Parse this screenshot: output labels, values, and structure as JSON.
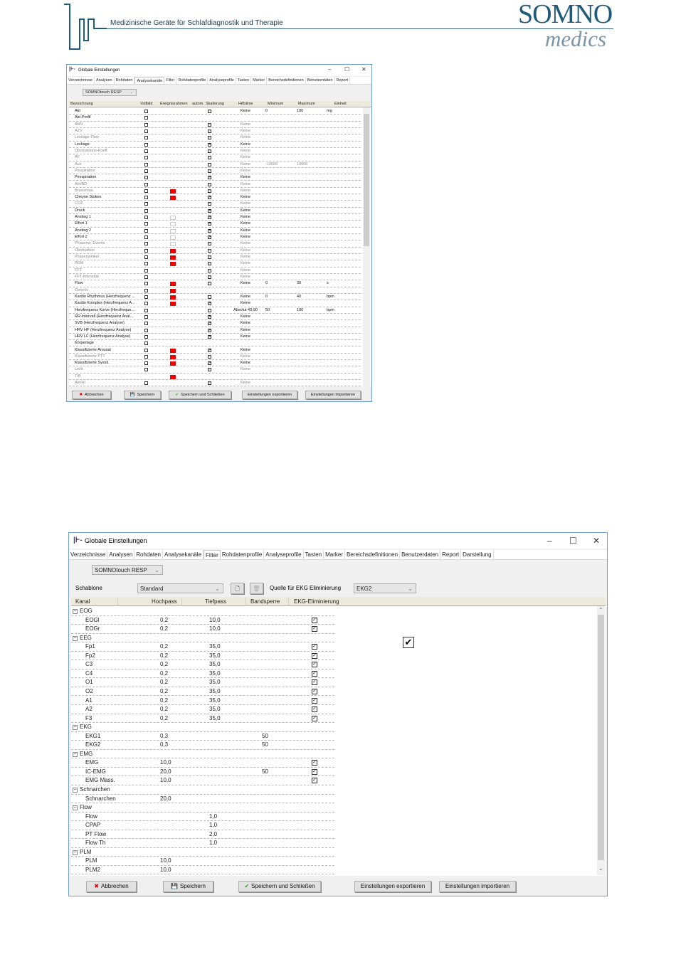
{
  "header": {
    "tagline": "Medizinische Geräte für Schlafdiagnostik und Therapie",
    "brand_top": "SOMNO",
    "brand_bottom": "medics",
    "brand_color": "#1f5a7a"
  },
  "dialog1": {
    "title": "Globale Einstellungen",
    "tabs": [
      "Verzeichnisse",
      "Analysen",
      "Rohdaten",
      "Analysekanäle",
      "Filter",
      "Rohdatenprofile",
      "Analyseprofile",
      "Tasten",
      "Marker",
      "Bereichsdefinitionen",
      "Benutzerdaten",
      "Report"
    ],
    "active_tab": "Analysekanäle",
    "device": "SOMNOtouch RESP",
    "columns": [
      "Bezeichnung",
      "Vollbild",
      "Ereignisrahmen",
      "autom.",
      "Skalierung",
      "Hilfslinie",
      "Minimum",
      "Maximum",
      "Einheit"
    ],
    "rows": [
      {
        "name": "Akt",
        "ev": "",
        "sk": "unchecked",
        "hl": "Keine",
        "min": "0",
        "max": "100",
        "unit": "mg"
      },
      {
        "name": "Akt-Profil",
        "ev": "",
        "sk": "",
        "hl": "",
        "min": "",
        "max": "",
        "unit": ""
      },
      {
        "name": "AMV",
        "dim": true,
        "ev": "",
        "sk": "checked",
        "hl": "Keine"
      },
      {
        "name": "AZV",
        "dim": true,
        "ev": "",
        "sk": "checked",
        "hl": "Keine"
      },
      {
        "name": "Leckage Flow",
        "dim": true,
        "ev": "",
        "sk": "checked",
        "hl": "Keine"
      },
      {
        "name": "Leckage",
        "ev": "",
        "sk": "checked",
        "hl": "Keine"
      },
      {
        "name": "Obstruktions-Koeff.",
        "dim": true,
        "ev": "",
        "sk": "checked",
        "hl": "Keine"
      },
      {
        "name": "AF",
        "dim": true,
        "ev": "",
        "sk": "checked",
        "hl": "Keine"
      },
      {
        "name": "Aux",
        "dim": true,
        "ev": "",
        "sk": "unchecked",
        "hl": "Keine",
        "min": "-10000",
        "max": "10000"
      },
      {
        "name": "Pinspiration",
        "dim": true,
        "ev": "",
        "sk": "checked",
        "hl": "Keine"
      },
      {
        "name": "Pexspiration",
        "ev": "",
        "sk": "checked",
        "hl": "Keine"
      },
      {
        "name": "Akt/BD",
        "dim": true,
        "ev": "",
        "sk": "checked",
        "hl": "Keine"
      },
      {
        "name": "Bruxismus",
        "dim": true,
        "ev": "red",
        "sk": "checked",
        "hl": "Keine"
      },
      {
        "name": "Cheyne Stokes",
        "ev": "red",
        "sk": "checked",
        "hl": "Keine"
      },
      {
        "name": "CO2",
        "dim": true,
        "ev": "",
        "sk": "checked",
        "hl": "Keine"
      },
      {
        "name": "Druck",
        "ev": "",
        "sk": "checked",
        "hl": "Keine"
      },
      {
        "name": "Anstieg 1",
        "ev": "empty",
        "sk": "checked",
        "hl": "Keine"
      },
      {
        "name": "Effort 1",
        "ev": "empty",
        "sk": "checked",
        "hl": "Keine"
      },
      {
        "name": "Anstieg 2",
        "ev": "empty",
        "sk": "checked",
        "hl": "Keine"
      },
      {
        "name": "Effort 2",
        "ev": "empty",
        "sk": "checked",
        "hl": "Keine"
      },
      {
        "name": "Phasenw. Events",
        "dim": true,
        "ev": "empty",
        "sk": "checked",
        "hl": "Keine"
      },
      {
        "name": "Obstruktion",
        "dim": true,
        "ev": "red",
        "sk": "checked",
        "hl": "Keine"
      },
      {
        "name": "Phasenwinkel",
        "dim": true,
        "ev": "red",
        "sk": "checked",
        "hl": "Keine"
      },
      {
        "name": "REM",
        "dim": true,
        "ev": "red",
        "sk": "checked",
        "hl": "Keine"
      },
      {
        "name": "FFT",
        "dim": true,
        "ev": "",
        "sk": "checked",
        "hl": "Keine"
      },
      {
        "name": "FFT-Intensität",
        "dim": true,
        "ev": "",
        "sk": "checked",
        "hl": "Keine"
      },
      {
        "name": "Flow",
        "ev": "red",
        "sk": "unchecked",
        "hl": "Keine",
        "min": "0",
        "max": "30",
        "unit": "s"
      },
      {
        "name": "Generic",
        "dim": true,
        "ev": "red",
        "sk": "",
        "hl": ""
      },
      {
        "name": "Kardio Rhythmus (Herzfrequenz ...",
        "ev": "red",
        "sk": "unchecked",
        "hl": "Keine",
        "min": "0",
        "max": "40",
        "unit": "bpm"
      },
      {
        "name": "Kardio Komplex (Herzfrequenz A...",
        "ev": "red",
        "sk": "checked",
        "hl": "Keine"
      },
      {
        "name": "Herzfrequenz Kurve (Herzfreque...",
        "ev": "",
        "sk": "unchecked",
        "hl": "Absolut 40;90",
        "min": "50",
        "max": "100",
        "unit": "bpm"
      },
      {
        "name": "RR-Intervall (Herzfrequenz Anal...",
        "ev": "",
        "sk": "checked",
        "hl": "Keine"
      },
      {
        "name": "SVB (Herzfrequenz Analyse)",
        "ev": "",
        "sk": "checked",
        "hl": "Keine"
      },
      {
        "name": "HRV HF (Herzfrequenz Analyse)",
        "ev": "",
        "sk": "checked",
        "hl": "Keine"
      },
      {
        "name": "HRV LF (Herzfrequenz Analyse)",
        "ev": "",
        "sk": "checked",
        "hl": "Keine"
      },
      {
        "name": "Körperlage",
        "ev": "",
        "sk": "",
        "hl": ""
      },
      {
        "name": "Klassifizierte Arousal",
        "ev": "red",
        "sk": "checked",
        "hl": "Keine"
      },
      {
        "name": "Klassifizierte PTT",
        "dim": true,
        "ev": "red",
        "sk": "checked",
        "hl": "Keine"
      },
      {
        "name": "Klassifizierte Systol.",
        "ev": "red",
        "sk": "checked",
        "hl": "Keine"
      },
      {
        "name": "Licht",
        "dim": true,
        "ev": "",
        "sk": "checked",
        "hl": "Keine"
      },
      {
        "name": "TIB",
        "dim": true,
        "novb": true,
        "ev": "red",
        "sk": "",
        "hl": ""
      },
      {
        "name": "Akt/HI",
        "dim": true,
        "ev": "",
        "sk": "checked",
        "hl": "Keine"
      }
    ],
    "buttons": {
      "cancel": "Abbrechen",
      "save": "Speichern",
      "save_close": "Speichern und Schließen",
      "export": "Einstellungen exportieren",
      "import": "Einstellungen importieren"
    }
  },
  "dialog2": {
    "title": "Globale Einstellungen",
    "tabs": [
      "Verzeichnisse",
      "Analysen",
      "Rohdaten",
      "Analysekanäle",
      "Filter",
      "Rohdatenprofile",
      "Analyseprofile",
      "Tasten",
      "Marker",
      "Bereichsdefinitionen",
      "Benutzerdaten",
      "Report",
      "Darstellung"
    ],
    "active_tab": "Filter",
    "device": "SOMNOtouch RESP",
    "template_label": "Schablone",
    "template_value": "Standard",
    "ekg_source_label": "Quelle für EKG Eliminierung",
    "ekg_source_value": "EKG2",
    "columns": [
      "Kanal",
      "Hochpass",
      "Tiefpass",
      "Bandsperre",
      "EKG-Eliminierung"
    ],
    "rows": [
      {
        "group": "EOG"
      },
      {
        "name": "EOGl",
        "hp": "0,2",
        "tp": "10,0",
        "bs": "",
        "ekg": true
      },
      {
        "name": "EOGr",
        "hp": "0,2",
        "tp": "10,0",
        "bs": "",
        "ekg": true
      },
      {
        "group": "EEG"
      },
      {
        "name": "Fp1",
        "hp": "0,2",
        "tp": "35,0",
        "bs": "",
        "ekg": true
      },
      {
        "name": "Fp2",
        "hp": "0,2",
        "tp": "35,0",
        "bs": "",
        "ekg": true
      },
      {
        "name": "C3",
        "hp": "0,2",
        "tp": "35,0",
        "bs": "",
        "ekg": true
      },
      {
        "name": "C4",
        "hp": "0,2",
        "tp": "35,0",
        "bs": "",
        "ekg": true
      },
      {
        "name": "O1",
        "hp": "0,2",
        "tp": "35,0",
        "bs": "",
        "ekg": true
      },
      {
        "name": "O2",
        "hp": "0,2",
        "tp": "35,0",
        "bs": "",
        "ekg": true
      },
      {
        "name": "A1",
        "hp": "0,2",
        "tp": "35,0",
        "bs": "",
        "ekg": true
      },
      {
        "name": "A2",
        "hp": "0,2",
        "tp": "35,0",
        "bs": "",
        "ekg": true
      },
      {
        "name": "F3",
        "hp": "0,2",
        "tp": "35,0",
        "bs": "",
        "ekg": true
      },
      {
        "group": "EKG"
      },
      {
        "name": "EKG1",
        "hp": "0,3",
        "tp": "",
        "bs": "50",
        "ekg": false
      },
      {
        "name": "EKG2",
        "hp": "0,3",
        "tp": "",
        "bs": "50",
        "ekg": false
      },
      {
        "group": "EMG"
      },
      {
        "name": "EMG",
        "hp": "10,0",
        "tp": "",
        "bs": "",
        "ekg": true
      },
      {
        "name": "IC-EMG",
        "hp": "20,0",
        "tp": "",
        "bs": "50",
        "ekg": true
      },
      {
        "name": "EMG Mass.",
        "hp": "10,0",
        "tp": "",
        "bs": "",
        "ekg": true
      },
      {
        "group": "Schnarchen"
      },
      {
        "name": "Schnarchen",
        "hp": "20,0",
        "tp": "",
        "bs": "",
        "ekg": false
      },
      {
        "group": "Flow"
      },
      {
        "name": "Flow",
        "hp": "",
        "tp": "1,0",
        "bs": "",
        "ekg": false
      },
      {
        "name": "CPAP",
        "hp": "",
        "tp": "1,0",
        "bs": "",
        "ekg": false
      },
      {
        "name": "PT Flow",
        "hp": "",
        "tp": "2,0",
        "bs": "",
        "ekg": false
      },
      {
        "name": "Flow Th",
        "hp": "",
        "tp": "1,0",
        "bs": "",
        "ekg": false
      },
      {
        "group": "PLM"
      },
      {
        "name": "PLM",
        "hp": "10,0",
        "tp": "",
        "bs": "",
        "ekg": false
      },
      {
        "name": "PLM2",
        "hp": "10,0",
        "tp": "",
        "bs": "",
        "ekg": false
      }
    ],
    "standalone_checkbox": true,
    "buttons": {
      "cancel": "Abbrechen",
      "save": "Speichern",
      "save_close": "Speichern und Schließen",
      "export": "Einstellungen exportieren",
      "import": "Einstellungen importieren"
    }
  }
}
